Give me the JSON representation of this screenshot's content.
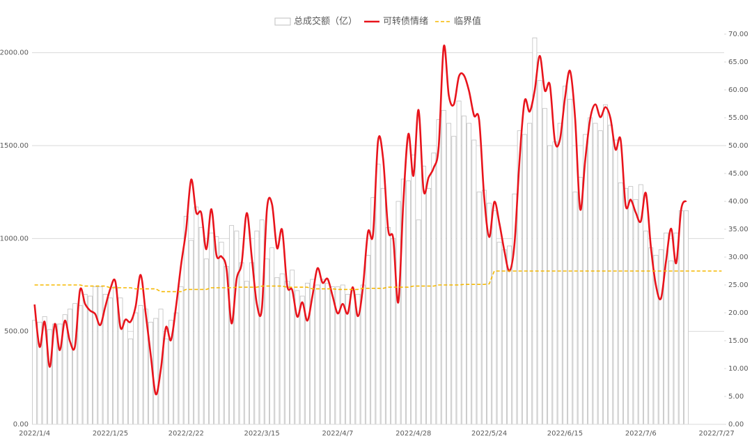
{
  "chart_data": {
    "type": "combo",
    "categories": [
      "2022/1/4",
      null,
      null,
      null,
      null,
      null,
      null,
      null,
      null,
      null,
      null,
      null,
      null,
      null,
      null,
      "2022/1/25",
      null,
      null,
      null,
      null,
      null,
      null,
      null,
      null,
      null,
      null,
      null,
      null,
      null,
      null,
      "2022/2/22",
      null,
      null,
      null,
      null,
      null,
      null,
      null,
      null,
      null,
      null,
      null,
      null,
      null,
      null,
      "2022/3/15",
      null,
      null,
      null,
      null,
      null,
      null,
      null,
      null,
      null,
      null,
      null,
      null,
      null,
      null,
      "2022/4/7",
      null,
      null,
      null,
      null,
      null,
      null,
      null,
      null,
      null,
      null,
      null,
      null,
      null,
      null,
      "2022/4/28",
      null,
      null,
      null,
      null,
      null,
      null,
      null,
      null,
      null,
      null,
      null,
      null,
      null,
      null,
      "2022/5/24",
      null,
      null,
      null,
      null,
      null,
      null,
      null,
      null,
      null,
      null,
      null,
      null,
      null,
      null,
      "2022/6/15",
      null,
      null,
      null,
      null,
      null,
      null,
      null,
      null,
      null,
      null,
      null,
      null,
      null,
      null,
      "2022/7/6",
      null,
      null,
      null,
      null,
      null,
      null,
      null,
      null,
      null,
      null,
      null,
      null,
      null,
      null,
      "2022/7/27",
      null
    ],
    "series": [
      {
        "name": "总成交额（亿）",
        "type": "bar",
        "color": "#bfbfbf",
        "values": [
          560,
          550,
          580,
          510,
          540,
          540,
          590,
          620,
          650,
          640,
          700,
          690,
          740,
          740,
          700,
          680,
          740,
          680,
          560,
          460,
          600,
          640,
          620,
          550,
          570,
          620,
          460,
          560,
          600,
          740,
          1120,
          990,
          1170,
          1060,
          890,
          1030,
          1010,
          980,
          850,
          1070,
          1040,
          870,
          770,
          870,
          1040,
          1100,
          890,
          950,
          790,
          810,
          770,
          830,
          720,
          690,
          760,
          780,
          750,
          780,
          760,
          740,
          740,
          750,
          700,
          720,
          700,
          750,
          910,
          1220,
          1400,
          1270,
          1060,
          1000,
          1200,
          1320,
          1310,
          1450,
          1100,
          1390,
          1270,
          1460,
          1640,
          1690,
          1620,
          1550,
          1740,
          1660,
          1620,
          1530,
          1250,
          1260,
          1190,
          1150,
          980,
          940,
          960,
          1240,
          1580,
          1560,
          1620,
          2080,
          1850,
          1700,
          1500,
          1520,
          1620,
          1820,
          1750,
          1250,
          1330,
          1560,
          1650,
          1620,
          1580,
          1720,
          1610,
          1530,
          1300,
          1270,
          1280,
          1210,
          1290,
          1040,
          950,
          910,
          940,
          1030,
          880,
          1030,
          1150,
          1150,
          null,
          null,
          null,
          null,
          null,
          null,
          null
        ]
      },
      {
        "name": "可转债情绪",
        "type": "line",
        "axis": "y2",
        "color": "#e8141c",
        "smooth": true,
        "values": [
          21.5,
          13.9,
          18.4,
          10.3,
          18,
          13.3,
          18.6,
          14.9,
          14,
          24.1,
          21.6,
          20.4,
          19.8,
          17.8,
          21.1,
          24.3,
          25.6,
          17.4,
          18.8,
          18.4,
          21.1,
          26.8,
          19.9,
          12.4,
          5.4,
          9.9,
          17.4,
          15.1,
          21.1,
          28.6,
          34.9,
          43.9,
          38,
          37.9,
          31.4,
          38.6,
          30.4,
          30.1,
          27.9,
          18.1,
          26.1,
          28.9,
          37.9,
          29.9,
          21.6,
          20.8,
          38.6,
          39.5,
          31.6,
          34.9,
          24.9,
          24.1,
          19.3,
          21.9,
          18.6,
          23,
          28,
          25.4,
          26.1,
          23,
          19.9,
          21.6,
          19.9,
          24.6,
          19.4,
          24.6,
          34.5,
          34.1,
          50.9,
          47.6,
          34.9,
          33.3,
          21.9,
          39.9,
          52.1,
          44.6,
          56.4,
          42,
          44.3,
          46,
          49.9,
          67.8,
          59,
          57.4,
          62.4,
          62.6,
          59.8,
          55.4,
          54.6,
          40.8,
          33.6,
          39.9,
          36.1,
          31.1,
          27.5,
          32.4,
          47.4,
          58,
          56.1,
          59.9,
          66.1,
          59.9,
          60.9,
          50.8,
          51.1,
          58.6,
          63.4,
          54.9,
          38.6,
          47.4,
          54.9,
          57.4,
          55.1,
          56.9,
          54.9,
          49.3,
          51.1,
          39.3,
          40.3,
          38,
          36.4,
          41.5,
          31.8,
          24.9,
          22.6,
          29.3,
          35.1,
          28.9,
          38.6,
          40.1,
          null,
          null,
          null,
          null,
          null,
          null,
          null
        ]
      },
      {
        "name": "临界值",
        "type": "line",
        "axis": "y2",
        "color": "#f5b800",
        "dashed": true,
        "values": [
          25,
          25,
          25,
          25,
          25,
          25,
          25,
          25,
          25,
          25,
          24.8,
          24.8,
          24.8,
          24.8,
          24.8,
          24.5,
          24.5,
          24.5,
          24.5,
          24.5,
          24.3,
          24.3,
          24.3,
          24.3,
          24.3,
          23.8,
          23.8,
          23.8,
          23.8,
          23.8,
          24.2,
          24.2,
          24.2,
          24.2,
          24.2,
          24.5,
          24.5,
          24.5,
          24.5,
          24.5,
          24.6,
          24.6,
          24.6,
          24.6,
          24.6,
          24.8,
          24.8,
          24.8,
          24.8,
          24.8,
          24.6,
          24.6,
          24.6,
          24.6,
          24.6,
          24.3,
          24.3,
          24.3,
          24.3,
          24.3,
          24.2,
          24.2,
          24.2,
          24.2,
          24.2,
          24.4,
          24.4,
          24.4,
          24.4,
          24.4,
          24.6,
          24.6,
          24.6,
          24.6,
          24.6,
          24.8,
          24.8,
          24.8,
          24.8,
          24.8,
          25,
          25,
          25,
          25,
          25,
          25.1,
          25.1,
          25.1,
          25.1,
          25.1,
          25.2,
          27.5,
          27.5,
          27.5,
          27.5,
          27.5,
          27.5,
          27.5,
          27.5,
          27.5,
          27.5,
          27.5,
          27.5,
          27.5,
          27.5,
          27.5,
          27.5,
          27.5,
          27.5,
          27.5,
          27.5,
          27.5,
          27.5,
          27.5,
          27.5,
          27.5,
          27.5,
          27.5,
          27.5,
          27.5,
          27.5,
          27.5,
          27.5,
          27.5,
          27.5,
          27.5,
          27.5,
          27.5,
          27.5,
          27.5,
          27.5,
          27.5,
          27.5,
          27.5,
          27.5,
          27.5,
          27.5
        ]
      }
    ],
    "ylim": [
      0,
      2100
    ],
    "yticks": [
      {
        "value": 0,
        "label": "0.00"
      },
      {
        "value": 500,
        "label": "500.00"
      },
      {
        "value": 1000,
        "label": "1000.00"
      },
      {
        "value": 1500,
        "label": "1500.00"
      },
      {
        "value": 2000,
        "label": "2000.00"
      }
    ],
    "y2lim": [
      0,
      70
    ],
    "y2ticks": [
      {
        "value": 0,
        "label": "0.00"
      },
      {
        "value": 5,
        "label": "5.00"
      },
      {
        "value": 10,
        "label": "10.00"
      },
      {
        "value": 15,
        "label": "15.00"
      },
      {
        "value": 20,
        "label": "20.00"
      },
      {
        "value": 25,
        "label": "25.00"
      },
      {
        "value": 30,
        "label": "30.00"
      },
      {
        "value": 35,
        "label": "35.00"
      },
      {
        "value": 40,
        "label": "40.00"
      },
      {
        "value": 45,
        "label": "45.00"
      },
      {
        "value": 50,
        "label": "50.00"
      },
      {
        "value": 55,
        "label": "55.00"
      },
      {
        "value": 60,
        "label": "60.00"
      },
      {
        "value": 65,
        "label": "65.00"
      },
      {
        "value": 70,
        "label": "70.00"
      }
    ],
    "grid": true,
    "legend": "top"
  }
}
